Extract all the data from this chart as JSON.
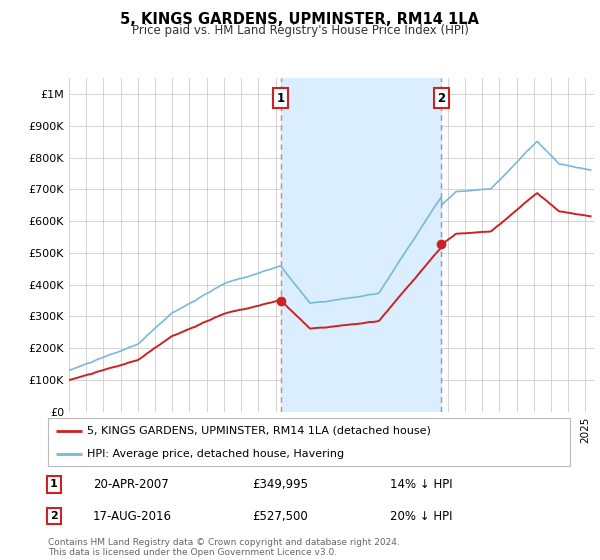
{
  "title": "5, KINGS GARDENS, UPMINSTER, RM14 1LA",
  "subtitle": "Price paid vs. HM Land Registry's House Price Index (HPI)",
  "ylim": [
    0,
    1050000
  ],
  "yticks": [
    0,
    100000,
    200000,
    300000,
    400000,
    500000,
    600000,
    700000,
    800000,
    900000,
    1000000
  ],
  "ytick_labels": [
    "£0",
    "£100K",
    "£200K",
    "£300K",
    "£400K",
    "£500K",
    "£600K",
    "£700K",
    "£800K",
    "£900K",
    "£1M"
  ],
  "hpi_color": "#7ab8d9",
  "price_color": "#cc2222",
  "sale1_vline_color": "#e08080",
  "sale2_vline_color": "#999999",
  "shading_color": "#daeeff",
  "background_color": "#ffffff",
  "grid_color": "#cccccc",
  "sale1_year": 2007.3,
  "sale1_price": 349995,
  "sale2_year": 2016.63,
  "sale2_price": 527500,
  "sale1_date": "20-APR-2007",
  "sale1_text": "£349,995",
  "sale1_pct": "14% ↓ HPI",
  "sale2_date": "17-AUG-2016",
  "sale2_text": "£527,500",
  "sale2_pct": "20% ↓ HPI",
  "legend_line1": "5, KINGS GARDENS, UPMINSTER, RM14 1LA (detached house)",
  "legend_line2": "HPI: Average price, detached house, Havering",
  "footer": "Contains HM Land Registry data © Crown copyright and database right 2024.\nThis data is licensed under the Open Government Licence v3.0.",
  "xmin": 1995.0,
  "xmax": 2025.5
}
